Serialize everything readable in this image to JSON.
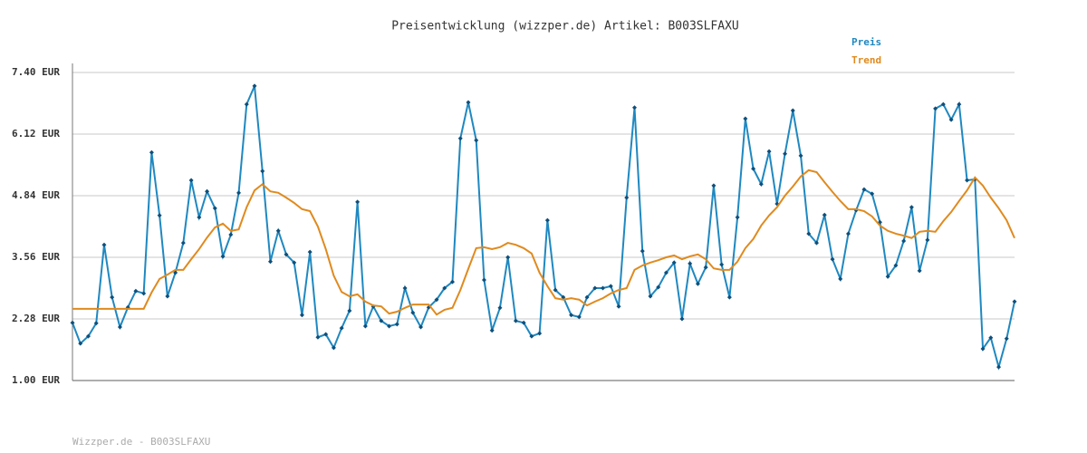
{
  "chart_data": {
    "type": "line",
    "title": "Preisentwicklung (wizzper.de) Artikel: B003SLFAXU",
    "footer": "Wizzper.de - B003SLFAXU",
    "ylim": [
      1.0,
      7.4
    ],
    "yticks": [
      {
        "value": 1.0,
        "label": "1.00 EUR"
      },
      {
        "value": 2.28,
        "label": "2.28 EUR"
      },
      {
        "value": 3.56,
        "label": "3.56 EUR"
      },
      {
        "value": 4.84,
        "label": "4.84 EUR"
      },
      {
        "value": 6.12,
        "label": "6.12 EUR"
      },
      {
        "value": 7.4,
        "label": "7.40 EUR"
      }
    ],
    "grid": true,
    "legend": "top-right",
    "series": [
      {
        "name": "Preis",
        "color": "#1f88c0",
        "markers": true,
        "values": [
          2.2,
          1.77,
          1.92,
          2.19,
          3.82,
          2.73,
          2.11,
          2.52,
          2.86,
          2.81,
          5.74,
          4.43,
          2.75,
          3.24,
          3.86,
          5.16,
          4.39,
          4.93,
          4.58,
          3.58,
          4.03,
          4.9,
          6.74,
          7.12,
          5.35,
          3.47,
          4.11,
          3.62,
          3.45,
          2.36,
          3.67,
          1.9,
          1.96,
          1.68,
          2.09,
          2.45,
          4.71,
          2.13,
          2.54,
          2.24,
          2.13,
          2.17,
          2.92,
          2.41,
          2.11,
          2.52,
          2.68,
          2.92,
          3.05,
          6.03,
          6.78,
          5.99,
          3.09,
          2.04,
          2.51,
          3.56,
          2.24,
          2.2,
          1.92,
          1.98,
          4.33,
          2.88,
          2.73,
          2.36,
          2.32,
          2.73,
          2.92,
          2.92,
          2.96,
          2.54,
          4.8,
          6.67,
          3.69,
          2.75,
          2.94,
          3.24,
          3.45,
          2.28,
          3.43,
          3.01,
          3.35,
          5.05,
          3.41,
          2.73,
          4.39,
          6.44,
          5.4,
          5.08,
          5.76,
          4.67,
          5.71,
          6.61,
          5.67,
          4.05,
          3.86,
          4.44,
          3.52,
          3.11,
          4.05,
          4.54,
          4.97,
          4.88,
          4.29,
          3.16,
          3.39,
          3.9,
          4.6,
          3.28,
          3.92,
          6.65,
          6.74,
          6.42,
          6.74,
          5.16,
          5.18,
          1.66,
          1.89,
          1.28,
          1.87,
          2.64
        ]
      },
      {
        "name": "Trend",
        "color": "#e08a1e",
        "markers": false,
        "values": [
          2.49,
          2.49,
          2.49,
          2.49,
          2.49,
          2.49,
          2.49,
          2.49,
          2.49,
          2.49,
          2.83,
          3.11,
          3.2,
          3.3,
          3.3,
          3.52,
          3.73,
          3.97,
          4.18,
          4.26,
          4.11,
          4.14,
          4.6,
          4.95,
          5.08,
          4.93,
          4.9,
          4.8,
          4.69,
          4.56,
          4.52,
          4.2,
          3.73,
          3.18,
          2.84,
          2.75,
          2.79,
          2.64,
          2.56,
          2.54,
          2.39,
          2.43,
          2.51,
          2.58,
          2.58,
          2.58,
          2.37,
          2.47,
          2.51,
          2.88,
          3.32,
          3.75,
          3.77,
          3.73,
          3.77,
          3.86,
          3.82,
          3.75,
          3.64,
          3.24,
          2.96,
          2.71,
          2.68,
          2.71,
          2.68,
          2.56,
          2.64,
          2.71,
          2.81,
          2.88,
          2.92,
          3.3,
          3.39,
          3.45,
          3.5,
          3.56,
          3.6,
          3.52,
          3.58,
          3.62,
          3.52,
          3.33,
          3.3,
          3.3,
          3.47,
          3.75,
          3.94,
          4.22,
          4.43,
          4.6,
          4.84,
          5.03,
          5.24,
          5.37,
          5.33,
          5.12,
          4.92,
          4.73,
          4.56,
          4.56,
          4.52,
          4.41,
          4.22,
          4.11,
          4.05,
          4.01,
          3.96,
          4.09,
          4.11,
          4.09,
          4.31,
          4.5,
          4.73,
          4.95,
          5.22,
          5.05,
          4.8,
          4.58,
          4.33,
          3.96
        ]
      }
    ]
  }
}
